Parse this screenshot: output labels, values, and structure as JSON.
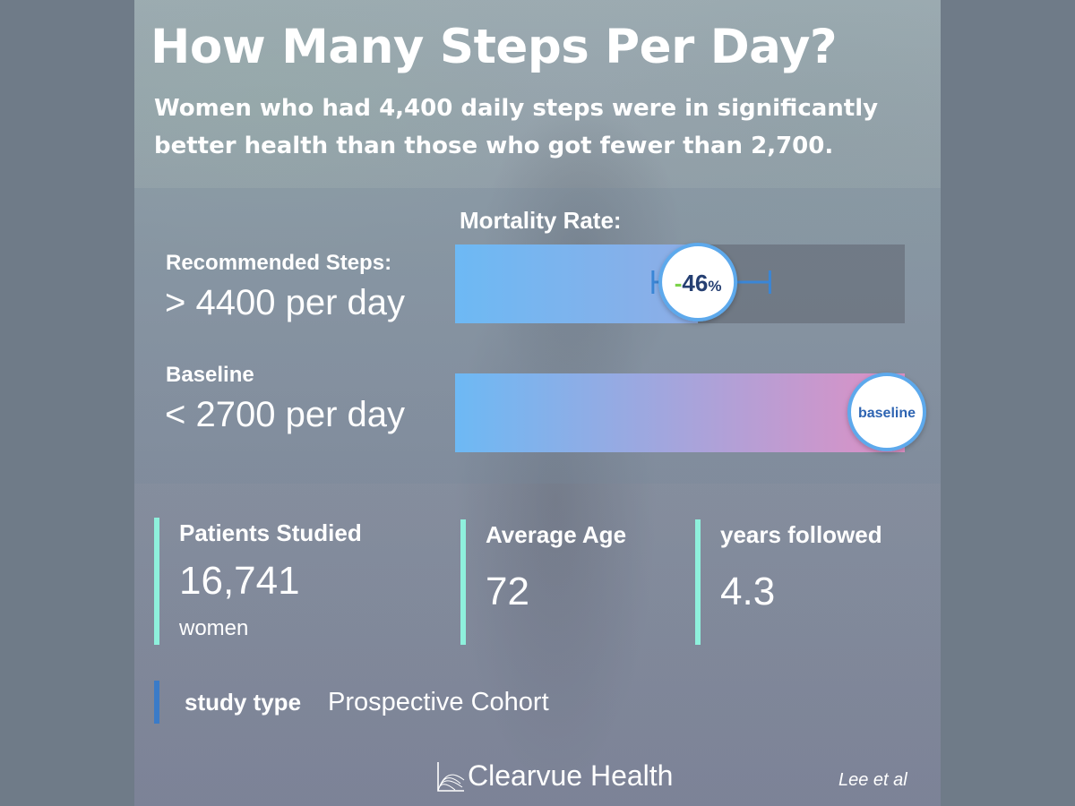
{
  "header": {
    "title": "How Many Steps Per Day?",
    "subtitle": "Women who had 4,400 daily steps were in significantly better health than those who got fewer than 2,700."
  },
  "chart_data": {
    "type": "bar",
    "title": "Mortality Rate:",
    "categories": [
      {
        "label": "Recommended Steps:",
        "sublabel": "> 4400 per day"
      },
      {
        "label": "Baseline",
        "sublabel": "< 2700 per day"
      }
    ],
    "values": [
      54,
      100
    ],
    "xlim": [
      0,
      100
    ],
    "annotations": [
      {
        "category": 0,
        "text": "-46",
        "suffix": "%",
        "error_low": 44,
        "error_high": 70
      },
      {
        "category": 1,
        "text": "baseline"
      }
    ],
    "colors": {
      "bar_start": "#6db9f4",
      "bar_end_full": "#de90c4",
      "track": "#5e6570",
      "badge_border": "#5da9ec",
      "error_bar": "#3a86d6",
      "minus": "#7cd34a",
      "badge_text": "#253f72",
      "badge_text_base": "#2e64b2"
    }
  },
  "stats": [
    {
      "label": "Patients Studied",
      "value": "16,741",
      "unit": "women"
    },
    {
      "label": "Average Age",
      "value": "72"
    },
    {
      "label": "years followed",
      "value": "4.3"
    }
  ],
  "study": {
    "label": "study type",
    "value": "Prospective Cohort"
  },
  "footer": {
    "brand": "Clearvue Health",
    "citation": "Lee et al"
  },
  "theme": {
    "accent_stat": "#8ef0dc",
    "accent_study": "#3a7bc8"
  }
}
